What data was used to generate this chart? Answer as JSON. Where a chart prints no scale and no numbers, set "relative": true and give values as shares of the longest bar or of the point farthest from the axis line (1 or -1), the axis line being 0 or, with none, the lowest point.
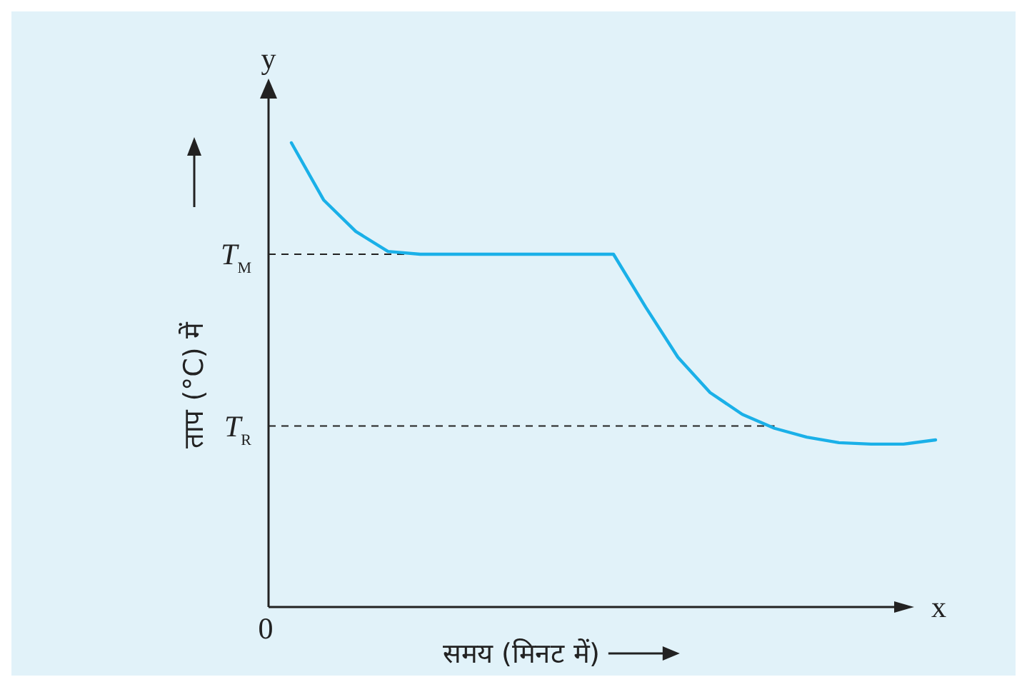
{
  "chart_data": {
    "type": "line",
    "relative": true,
    "categories": [
      null,
      null,
      null,
      null,
      null,
      null,
      null,
      null,
      null,
      null,
      null,
      null,
      null,
      null,
      null,
      null,
      null,
      null,
      null,
      null,
      null
    ],
    "series": [
      {
        "color": "#1ab0e8",
        "values": [
          1.0,
          0.877,
          0.809,
          0.766,
          0.76,
          0.76,
          0.76,
          0.76,
          0.76,
          0.76,
          0.76,
          0.646,
          0.538,
          0.462,
          0.415,
          0.385,
          0.366,
          0.354,
          0.351,
          0.351,
          0.36
        ]
      }
    ],
    "xlabel": "समय (मिनट में)",
    "ylabel": "ताप (°C) में",
    "ref_lines": [
      {
        "axis": "y",
        "value": 0.76,
        "label": "T$_{M}$",
        "line_style": "dashed",
        "color": "#222222"
      },
      {
        "axis": "y",
        "value": 0.39,
        "label": "T$_{R}$",
        "line_style": "dashed",
        "color": "#222222"
      }
    ],
    "annotations": [
      "0",
      "x",
      "y"
    ],
    "marker": "none",
    "line_style": "solid"
  }
}
